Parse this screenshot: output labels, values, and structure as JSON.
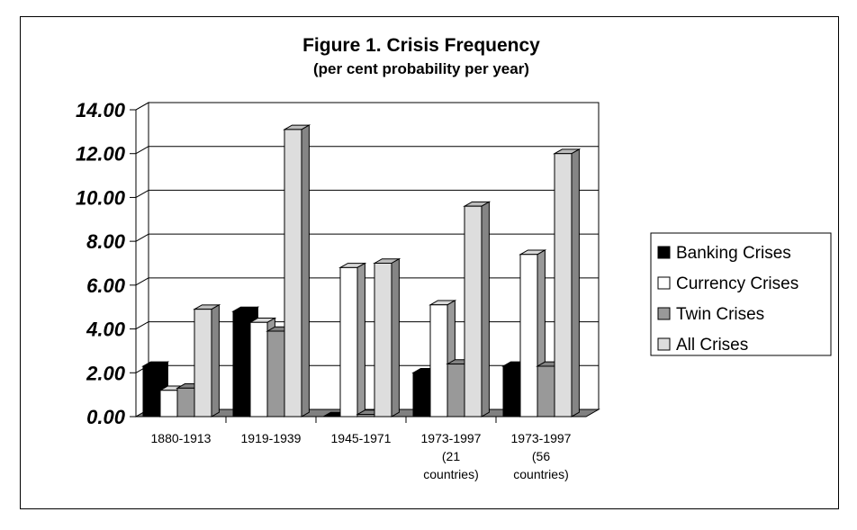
{
  "chart_data": {
    "type": "bar",
    "title": "Figure 1. Crisis Frequency",
    "subtitle": "(per cent probability per year)",
    "xlabel": "",
    "ylabel": "",
    "ylim": [
      0,
      14
    ],
    "yticks": [
      "0.00",
      "2.00",
      "4.00",
      "6.00",
      "8.00",
      "10.00",
      "12.00",
      "14.00"
    ],
    "grid": true,
    "legend_position": "right",
    "categories": [
      [
        "1880-1913"
      ],
      [
        "1919-1939"
      ],
      [
        "1945-1971"
      ],
      [
        "1973-1997",
        "(21",
        "countries)"
      ],
      [
        "1973-1997",
        "(56",
        "countries)"
      ]
    ],
    "series": [
      {
        "name": "Banking Crises",
        "color": "#000000",
        "values": [
          2.3,
          4.8,
          0.0,
          2.0,
          2.3
        ]
      },
      {
        "name": "Currency Crises",
        "color": "#ffffff",
        "values": [
          1.2,
          4.3,
          6.8,
          5.1,
          7.4
        ]
      },
      {
        "name": "Twin Crises",
        "color": "#999999",
        "values": [
          1.3,
          3.9,
          0.1,
          2.4,
          2.3
        ]
      },
      {
        "name": "All Crises",
        "color": "#dddddd",
        "values": [
          4.9,
          13.1,
          7.0,
          9.6,
          12.0
        ]
      }
    ]
  }
}
